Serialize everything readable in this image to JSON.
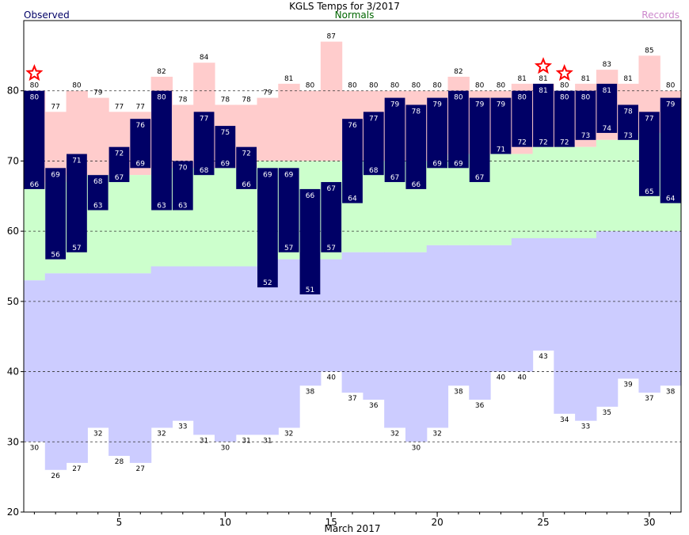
{
  "chart_data": {
    "type": "bar",
    "title": "KGLS Temps for 3/2017",
    "xlabel": "March 2017",
    "ylabel": "",
    "ylim": [
      20,
      90
    ],
    "yticks": [
      20,
      30,
      40,
      50,
      60,
      70,
      80
    ],
    "xticks": [
      5,
      10,
      15,
      20,
      25,
      30
    ],
    "grid": "dashed horizontal lines at 30, 40, 50, 60, 70, 80",
    "legend": [
      {
        "name": "Observed",
        "color": "#000066",
        "position": "top-left"
      },
      {
        "name": "Normals",
        "color": "#006600",
        "position": "top-center"
      },
      {
        "name": "Records",
        "color": "#cc88cc",
        "position": "top-right"
      }
    ],
    "colors": {
      "observed": "#000066",
      "normal_band": "#ccffcc",
      "record_high_band": "#ffcccc",
      "record_low_band": "#ccccff",
      "star": "#ff0000"
    },
    "days": [
      1,
      2,
      3,
      4,
      5,
      6,
      7,
      8,
      9,
      10,
      11,
      12,
      13,
      14,
      15,
      16,
      17,
      18,
      19,
      20,
      21,
      22,
      23,
      24,
      25,
      26,
      27,
      28,
      29,
      30,
      31
    ],
    "series": [
      {
        "name": "Observed High",
        "values": [
          80,
          69,
          71,
          68,
          72,
          76,
          80,
          70,
          77,
          75,
          72,
          69,
          69,
          66,
          67,
          76,
          77,
          79,
          78,
          79,
          80,
          79,
          79,
          80,
          81,
          80,
          80,
          81,
          78,
          77,
          79
        ]
      },
      {
        "name": "Observed Low",
        "values": [
          66,
          56,
          57,
          63,
          67,
          69,
          63,
          63,
          68,
          69,
          66,
          52,
          57,
          51,
          57,
          64,
          68,
          67,
          66,
          69,
          69,
          67,
          71,
          72,
          72,
          72,
          73,
          74,
          73,
          65,
          64
        ]
      },
      {
        "name": "Record High",
        "values": [
          80,
          77,
          80,
          79,
          77,
          77,
          82,
          78,
          84,
          78,
          78,
          79,
          81,
          80,
          87,
          80,
          80,
          80,
          80,
          80,
          82,
          80,
          80,
          81,
          81,
          80,
          81,
          83,
          81,
          85,
          80
        ]
      },
      {
        "name": "Record Low",
        "values": [
          30,
          26,
          27,
          32,
          28,
          27,
          32,
          33,
          31,
          30,
          31,
          31,
          32,
          38,
          40,
          37,
          36,
          32,
          30,
          32,
          38,
          36,
          40,
          40,
          43,
          34,
          33,
          35,
          39,
          37,
          38
        ]
      },
      {
        "name": "Normal High",
        "values": [
          66,
          67,
          68,
          68,
          68,
          68,
          69,
          69,
          69,
          69,
          69,
          70,
          70,
          70,
          70,
          70,
          70,
          70,
          70,
          70,
          71,
          71,
          71,
          71,
          72,
          72,
          72,
          73,
          73,
          74,
          74
        ]
      },
      {
        "name": "Normal Low",
        "values": [
          53,
          54,
          54,
          54,
          54,
          54,
          55,
          55,
          55,
          55,
          55,
          56,
          56,
          56,
          56,
          57,
          57,
          57,
          57,
          58,
          58,
          58,
          58,
          59,
          59,
          59,
          59,
          60,
          60,
          60,
          60
        ]
      }
    ],
    "record_set_days": [
      1,
      25,
      26
    ]
  }
}
